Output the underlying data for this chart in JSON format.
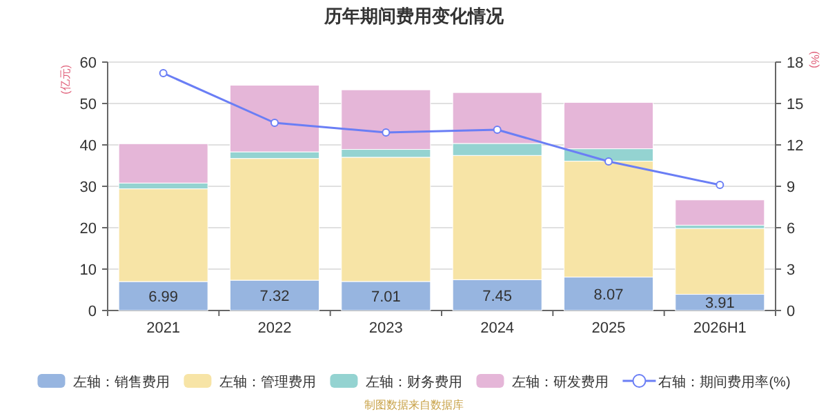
{
  "chart_data": {
    "type": "bar",
    "title": "历年期间费用变化情况",
    "ylabel": "(亿元)",
    "y2label": "(%)",
    "categories": [
      "2021",
      "2022",
      "2023",
      "2024",
      "2025",
      "2026H1"
    ],
    "stacked": true,
    "series": [
      {
        "name": "左轴：销售费用",
        "color": "#97b5e0",
        "values": [
          6.99,
          7.32,
          7.01,
          7.45,
          8.07,
          3.91
        ],
        "value_labels": [
          "6.99",
          "7.32",
          "7.01",
          "7.45",
          "8.07",
          "3.91"
        ]
      },
      {
        "name": "左轴：管理费用",
        "color": "#f7e4a6",
        "values": [
          22.4,
          29.4,
          30.0,
          30.0,
          28.0,
          15.9
        ]
      },
      {
        "name": "左轴：财务费用",
        "color": "#94d3d1",
        "values": [
          1.4,
          1.6,
          1.9,
          2.9,
          3.0,
          0.8
        ]
      },
      {
        "name": "左轴：研发费用",
        "color": "#e5b6d8",
        "values": [
          9.5,
          16.1,
          14.4,
          12.3,
          11.2,
          6.1
        ]
      },
      {
        "name": "右轴：期间费用率(%)",
        "type": "line",
        "axis": "y2",
        "color": "#6a7ef5",
        "marker": "circle",
        "values": [
          17.2,
          13.6,
          12.9,
          13.1,
          10.8,
          9.1
        ]
      }
    ],
    "ylim": [
      0,
      60
    ],
    "yticks": [
      0,
      10,
      20,
      30,
      40,
      50,
      60
    ],
    "y2lim": [
      0,
      18
    ],
    "y2ticks": [
      0,
      3,
      6,
      9,
      12,
      15,
      18
    ],
    "grid": "y",
    "legend": "bottom",
    "annotations": [
      "制图数据来自数据库"
    ]
  }
}
